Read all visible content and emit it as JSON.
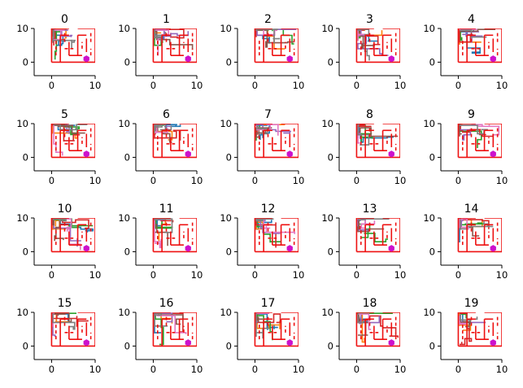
{
  "chart_data": {
    "type": "line",
    "description_layout": "grid",
    "grid": false,
    "xlim": [
      -4,
      10
    ],
    "ylim": [
      -4,
      10
    ],
    "xticks": [
      "0",
      "10"
    ],
    "yticks": [
      "0",
      "10"
    ],
    "panel_titles": [
      "0",
      "1",
      "2",
      "3",
      "4",
      "5",
      "6",
      "7",
      "8",
      "9",
      "10",
      "11",
      "12",
      "13",
      "14",
      "15",
      "16",
      "17",
      "18",
      "19"
    ],
    "maze_color": "#ee1111",
    "goal_color": "#cc11cc",
    "goal_point": [
      8,
      1
    ],
    "path_colors": [
      "#1f77b4",
      "#ff7f0e",
      "#2ca02c",
      "#d62728",
      "#9467bd",
      "#8c564b",
      "#e377c2",
      "#7f7f7f",
      "#bcbd22",
      "#17becf"
    ],
    "maze_walls": [
      [
        [
          0,
          0
        ],
        [
          10,
          0
        ]
      ],
      [
        [
          0,
          0
        ],
        [
          0,
          10
        ]
      ],
      [
        [
          10,
          0
        ],
        [
          10,
          10
        ]
      ],
      [
        [
          0,
          10
        ],
        [
          4,
          10
        ]
      ],
      [
        [
          6,
          10
        ],
        [
          10,
          10
        ]
      ],
      [
        [
          2,
          0
        ],
        [
          2,
          8
        ]
      ],
      [
        [
          2,
          8
        ],
        [
          4,
          8
        ]
      ],
      [
        [
          4,
          2
        ],
        [
          4,
          6
        ]
      ],
      [
        [
          4,
          2
        ],
        [
          7,
          2
        ]
      ],
      [
        [
          6,
          2
        ],
        [
          6,
          8
        ]
      ],
      [
        [
          6,
          8
        ],
        [
          8,
          8
        ]
      ],
      [
        [
          8,
          3
        ],
        [
          8,
          7
        ]
      ],
      [
        [
          1,
          2
        ],
        [
          1,
          7
        ]
      ],
      [
        [
          3,
          4
        ],
        [
          5,
          4
        ]
      ],
      [
        [
          7,
          4
        ],
        [
          7,
          6
        ]
      ],
      [
        [
          9,
          2
        ],
        [
          9,
          4
        ]
      ],
      [
        [
          9,
          6
        ],
        [
          9,
          9
        ]
      ],
      [
        [
          3,
          6
        ],
        [
          3,
          9
        ]
      ]
    ]
  }
}
